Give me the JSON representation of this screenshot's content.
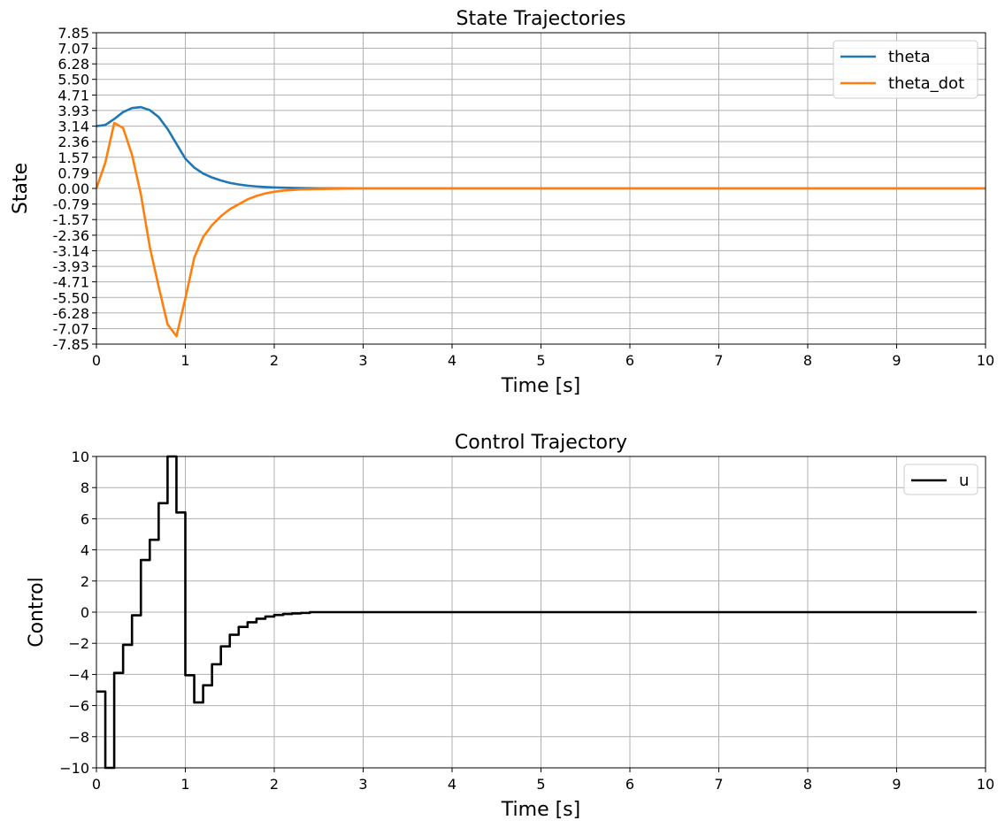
{
  "chart_data": [
    {
      "type": "line",
      "title": "State Trajectories",
      "xlabel": "Time [s]",
      "ylabel": "State",
      "xlim": [
        0,
        10
      ],
      "ylim": [
        -7.85,
        7.85
      ],
      "xticks": [
        "0",
        "1",
        "2",
        "3",
        "4",
        "5",
        "6",
        "7",
        "8",
        "9",
        "10"
      ],
      "yticks": [
        "-7.85",
        "-7.07",
        "-6.28",
        "-5.50",
        "-4.71",
        "-3.93",
        "-3.14",
        "-2.36",
        "-1.57",
        "-0.79",
        "0.00",
        "0.79",
        "1.57",
        "2.36",
        "3.14",
        "3.93",
        "4.71",
        "5.50",
        "6.28",
        "7.07",
        "7.85"
      ],
      "grid": true,
      "legend_position": "top-right",
      "series": [
        {
          "name": "theta",
          "color": "#1f77b4",
          "x": [
            0,
            0.1,
            0.2,
            0.3,
            0.4,
            0.5,
            0.6,
            0.7,
            0.8,
            0.9,
            1.0,
            1.1,
            1.2,
            1.3,
            1.4,
            1.5,
            1.6,
            1.7,
            1.8,
            1.9,
            2.0,
            2.1,
            2.2,
            2.3,
            2.4,
            2.5,
            2.6,
            2.8,
            3.0,
            10
          ],
          "values": [
            3.14,
            3.2,
            3.5,
            3.85,
            4.05,
            4.1,
            3.95,
            3.6,
            3.0,
            2.25,
            1.5,
            1.05,
            0.75,
            0.55,
            0.4,
            0.28,
            0.2,
            0.14,
            0.1,
            0.07,
            0.05,
            0.035,
            0.025,
            0.015,
            0.01,
            0.006,
            0.004,
            0.002,
            0.0,
            0.0
          ]
        },
        {
          "name": "theta_dot",
          "color": "#ff7f0e",
          "x": [
            0,
            0.1,
            0.2,
            0.3,
            0.4,
            0.5,
            0.6,
            0.7,
            0.8,
            0.9,
            1.0,
            1.1,
            1.2,
            1.3,
            1.4,
            1.5,
            1.6,
            1.7,
            1.8,
            1.9,
            2.0,
            2.1,
            2.2,
            2.3,
            2.5,
            2.7,
            3.0,
            10
          ],
          "values": [
            0.0,
            1.3,
            3.3,
            3.05,
            1.7,
            -0.3,
            -2.95,
            -4.95,
            -6.85,
            -7.45,
            -5.55,
            -3.5,
            -2.45,
            -1.85,
            -1.4,
            -1.05,
            -0.8,
            -0.55,
            -0.38,
            -0.25,
            -0.17,
            -0.11,
            -0.08,
            -0.05,
            -0.03,
            -0.015,
            0.0,
            0.0
          ]
        }
      ]
    },
    {
      "type": "line",
      "title": "Control Trajectory",
      "xlabel": "Time [s]",
      "ylabel": "Control",
      "xlim": [
        0,
        10
      ],
      "ylim": [
        -10,
        10
      ],
      "xticks": [
        "0",
        "1",
        "2",
        "3",
        "4",
        "5",
        "6",
        "7",
        "8",
        "9",
        "10"
      ],
      "yticks": [
        "−10",
        "−8",
        "−6",
        "−4",
        "−2",
        "0",
        "2",
        "4",
        "6",
        "8",
        "10"
      ],
      "ytick_values": [
        -10,
        -8,
        -6,
        -4,
        -2,
        0,
        2,
        4,
        6,
        8,
        10
      ],
      "grid": true,
      "legend_position": "top-right",
      "step": "post",
      "series": [
        {
          "name": "u",
          "color": "#000000",
          "x": [
            0,
            0.1,
            0.2,
            0.3,
            0.4,
            0.5,
            0.6,
            0.7,
            0.8,
            0.9,
            1.0,
            1.1,
            1.2,
            1.3,
            1.4,
            1.5,
            1.6,
            1.7,
            1.8,
            1.9,
            2.0,
            2.1,
            2.2,
            2.3,
            2.4,
            9.9
          ],
          "values": [
            -5.1,
            -10,
            -3.9,
            -2.1,
            -0.2,
            3.35,
            4.65,
            7.0,
            10,
            6.4,
            -4.05,
            -5.8,
            -4.7,
            -3.35,
            -2.2,
            -1.45,
            -0.95,
            -0.65,
            -0.42,
            -0.28,
            -0.18,
            -0.12,
            -0.08,
            -0.05,
            0.0,
            0.0
          ]
        }
      ]
    }
  ]
}
